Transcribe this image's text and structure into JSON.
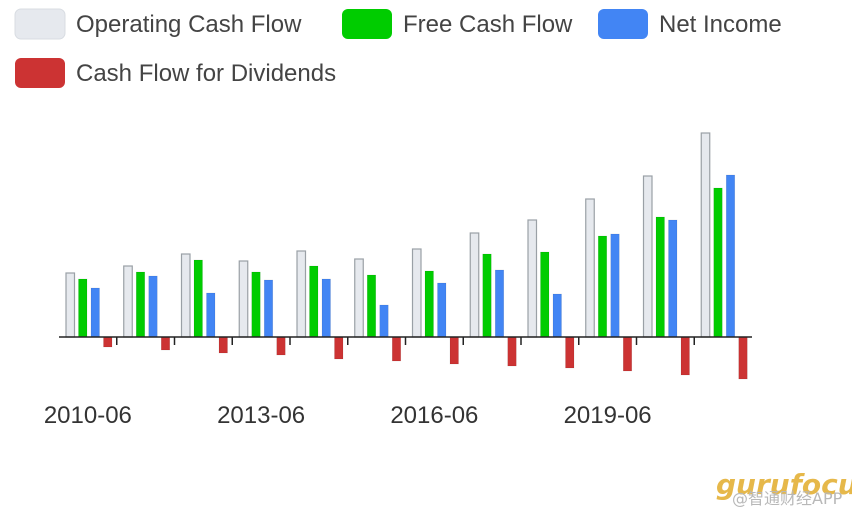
{
  "chart_data": {
    "type": "bar",
    "title": "",
    "xlabel": "",
    "ylabel": "",
    "categories": [
      "2010-06",
      "2011-06",
      "2012-06",
      "2013-06",
      "2014-06",
      "2015-06",
      "2016-06",
      "2017-06",
      "2018-06",
      "2019-06",
      "2020-06",
      "2021-06"
    ],
    "x_tick_labels": [
      {
        "category_index": 0,
        "label": "2010-06"
      },
      {
        "category_index": 3,
        "label": "2013-06"
      },
      {
        "category_index": 6,
        "label": "2016-06"
      },
      {
        "category_index": 9,
        "label": "2019-06"
      }
    ],
    "series": [
      {
        "name": "Operating Cash Flow",
        "color": "#e6e9ee",
        "values": [
          64,
          71,
          83,
          76,
          86,
          78,
          88,
          104,
          117,
          138,
          161,
          204
        ]
      },
      {
        "name": "Free Cash Flow",
        "color": "#00cc00",
        "values": [
          58,
          65,
          77,
          65,
          71,
          62,
          66,
          83,
          85,
          101,
          120,
          149
        ]
      },
      {
        "name": "Net Income",
        "color": "#4285f4",
        "values": [
          49,
          61,
          44,
          57,
          58,
          32,
          54,
          67,
          43,
          103,
          117,
          162
        ]
      },
      {
        "name": "Cash Flow for Dividends",
        "color": "#cc3333",
        "values": [
          -10,
          -13,
          -16,
          -18,
          -22,
          -24,
          -27,
          -29,
          -31,
          -34,
          -38,
          -42
        ]
      }
    ],
    "ylim": [
      -50,
      215
    ],
    "grid": false,
    "legend": "top",
    "y_axis_labels_shown": false
  },
  "watermark": {
    "logo_text": "gurufocus",
    "app_text": "@智通财经APP"
  }
}
